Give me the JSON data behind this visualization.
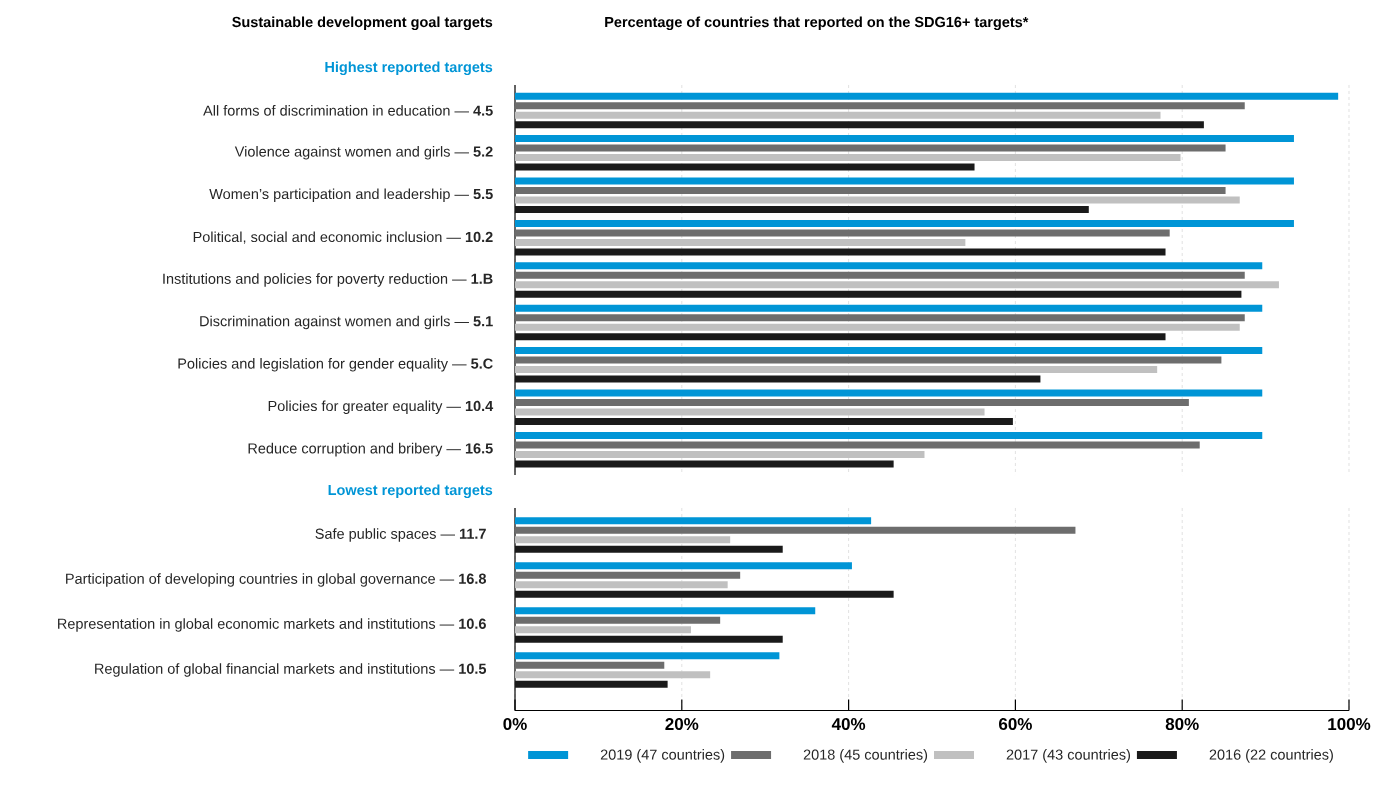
{
  "chart_data": [
    {
      "type": "bar",
      "orientation": "horizontal",
      "title": "Percentage of countries that reported on the SDG16+ targets*",
      "ylabel": "Sustainable development goal targets",
      "subtitle": "Highest reported targets",
      "categories": [
        "All forms of discrimination in education — **4.5**",
        "Violence against women and girls — **5.2**",
        "Women’s participation and leadership — **5.5**",
        "Political, social and economic inclusion — **10.2**",
        "Institutions and policies for poverty reduction — **1.B**",
        "Discrimination against women and girls — **5.1**",
        "Policies and legislation for gender equality — **5.C**",
        "Policies for greater equality — **10.4**",
        "Reduce corruption and bribery — **16.5**"
      ],
      "series": [
        {
          "color": "#0095d6",
          "values": [
            98.7,
            93.4,
            93.4,
            93.4,
            89.6,
            89.6,
            89.6,
            89.6,
            89.6
          ]
        },
        {
          "color": "#6d6d6d",
          "values": [
            87.5,
            85.2,
            85.2,
            78.5,
            87.5,
            87.5,
            84.7,
            80.8,
            82.1
          ]
        },
        {
          "color": "#c0c0c0",
          "values": [
            77.4,
            79.8,
            86.9,
            54.0,
            91.6,
            86.9,
            77.0,
            56.3,
            49.1
          ]
        },
        {
          "color": "#1a1a1a",
          "values": [
            82.6,
            55.1,
            68.8,
            78.0,
            87.1,
            78.0,
            63.0,
            59.7,
            45.4
          ]
        }
      ],
      "xlim": [
        0,
        100
      ],
      "xticks": [
        {
          "value": 0,
          "label": null
        },
        {
          "value": 20,
          "label": null
        },
        {
          "value": 40,
          "label": null
        },
        {
          "value": 60,
          "label": null
        },
        {
          "value": 80,
          "label": null
        },
        {
          "value": 100,
          "label": null
        }
      ],
      "grid": "x",
      "tick_labels": "y"
    },
    {
      "type": "bar",
      "orientation": "horizontal",
      "subtitle": "Lowest reported targets",
      "categories": [
        "Safe public spaces — **11.7**",
        "Participation of developing countries in global governance — **16.8**",
        "Representation in global economic markets and institutions — **10.6**",
        "Regulation of global financial markets and institutions — **10.5**"
      ],
      "series": [
        {
          "name": "2019 (47 countries)",
          "color": "#0095d6",
          "values": [
            42.7,
            40.4,
            36.0,
            31.7
          ]
        },
        {
          "name": "2018 (45 countries)",
          "color": "#6d6d6d",
          "values": [
            67.2,
            27.0,
            24.6,
            17.9
          ]
        },
        {
          "name": "2017 (43 countries)",
          "color": "#c0c0c0",
          "values": [
            25.8,
            25.5,
            21.1,
            23.4
          ]
        },
        {
          "name": "2016 (22 countries)",
          "color": "#1a1a1a",
          "values": [
            32.1,
            45.4,
            32.1,
            18.3
          ]
        }
      ],
      "xlim": [
        0,
        100
      ],
      "xticks": [
        {
          "value": 0,
          "label": "0%"
        },
        {
          "value": 20,
          "label": "20%"
        },
        {
          "value": 40,
          "label": "40%"
        },
        {
          "value": 60,
          "label": "60%"
        },
        {
          "value": 80,
          "label": "80%"
        },
        {
          "value": 100,
          "label": "100%"
        }
      ],
      "grid": "x",
      "legend": "bottom"
    }
  ]
}
